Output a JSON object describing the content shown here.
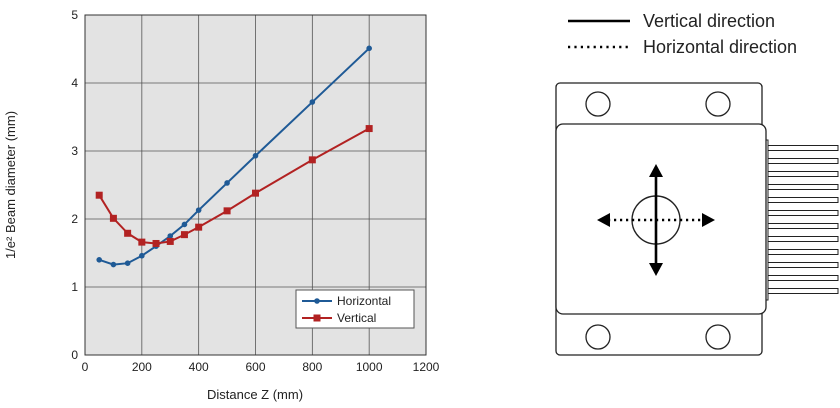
{
  "chart_data": {
    "type": "line",
    "xlabel": "Distance Z (mm)",
    "ylabel": "1/e² Beam diameter (mm)",
    "xlim": [
      0,
      1200
    ],
    "ylim": [
      0,
      5
    ],
    "xticks": [
      0,
      200,
      400,
      600,
      800,
      1000,
      1200
    ],
    "yticks": [
      0,
      1,
      2,
      3,
      4,
      5
    ],
    "grid": true,
    "legend_position": "bottom-right",
    "series": [
      {
        "name": "Horizontal",
        "color": "#1f5a96",
        "marker": "circle",
        "x": [
          50,
          100,
          150,
          200,
          250,
          300,
          350,
          400,
          500,
          600,
          800,
          1000
        ],
        "y": [
          1.4,
          1.33,
          1.35,
          1.46,
          1.6,
          1.75,
          1.92,
          2.13,
          2.53,
          2.93,
          3.72,
          4.51
        ]
      },
      {
        "name": "Vertical",
        "color": "#b22222",
        "marker": "square",
        "x": [
          50,
          100,
          150,
          200,
          250,
          300,
          350,
          400,
          500,
          600,
          800,
          1000
        ],
        "y": [
          2.35,
          2.01,
          1.79,
          1.66,
          1.64,
          1.67,
          1.77,
          1.88,
          2.12,
          2.38,
          2.87,
          3.33
        ]
      }
    ]
  },
  "diagram": {
    "legend": {
      "vertical_label": "Vertical direction",
      "horizontal_label": "Horizontal direction"
    },
    "line_color": "#000000"
  }
}
